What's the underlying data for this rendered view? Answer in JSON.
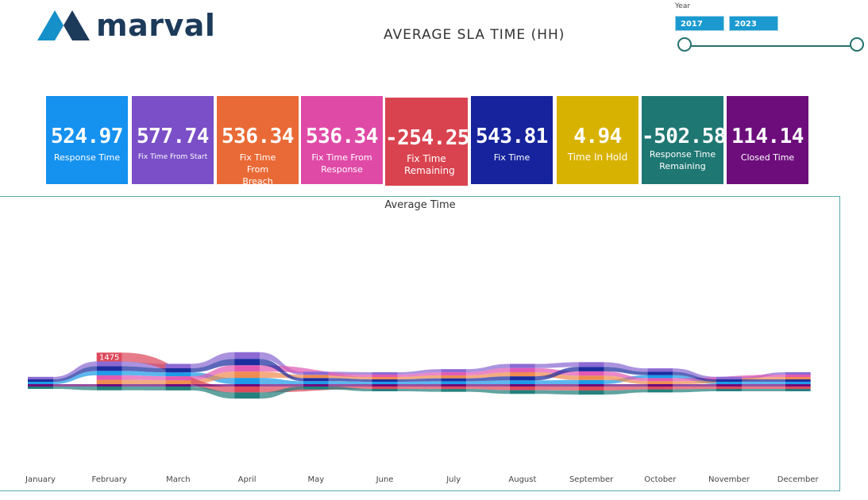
{
  "header": {
    "logo_text": "marval",
    "title": "AVERAGE  SLA  TIME  (HH)"
  },
  "year_filter": {
    "label": "Year",
    "from": "2017",
    "to": "2023"
  },
  "kpis": [
    {
      "value": "524.97",
      "label": "Response Time",
      "color": "#1591ef"
    },
    {
      "value": "577.74",
      "label": "Fix Time From Start",
      "color": "#7a4fc7"
    },
    {
      "value": "536.34",
      "label": "Fix Time From Breach",
      "color": "#e96a36"
    },
    {
      "value": "536.34",
      "label": "Fix Time From Response",
      "color": "#e04aa7"
    },
    {
      "value": "-254.25",
      "label": "Fix Time Remaining",
      "color": "#d9434f"
    },
    {
      "value": "543.81",
      "label": "Fix Time",
      "color": "#16239c"
    },
    {
      "value": "4.94",
      "label": "Time In Hold",
      "color": "#d8b200"
    },
    {
      "value": "-502.58",
      "label": "Response Time Remaining",
      "color": "#1f7773"
    },
    {
      "value": "114.14",
      "label": "Closed Time",
      "color": "#6d0d7c"
    }
  ],
  "chart_data": {
    "type": "ribbon",
    "title": "Average Time",
    "categories": [
      "January",
      "February",
      "March",
      "April",
      "May",
      "June",
      "July",
      "August",
      "September",
      "October",
      "November",
      "December"
    ],
    "series": [
      {
        "name": "Response Time",
        "color": "#1e9be8",
        "values": [
          393,
          741,
          663,
          1043,
          497,
          100,
          475,
          624,
          691,
          512,
          377,
          100
        ]
      },
      {
        "name": "Fix Time From Start",
        "color": "#8b6ad3",
        "values": [
          419,
          804,
          732,
          1116,
          533,
          120,
          529,
          708,
          804,
          577,
          427,
          120
        ]
      },
      {
        "name": "Fix Time From Breach",
        "color": "#ef8c52",
        "values": [
          null,
          733,
          653,
          1053,
          531,
          110,
          504,
          686,
          721,
          501,
          null,
          110
        ]
      },
      {
        "name": "Fix Time From Response",
        "color": "#e25ab4",
        "values": [
          null,
          733,
          653,
          1053,
          null,
          110,
          504,
          686,
          721,
          501,
          null,
          110
        ]
      },
      {
        "name": "Fix Time Remaining",
        "color": "#dd4a5c",
        "values": [
          null,
          1475,
          null,
          -982,
          null,
          -80,
          -415,
          -611,
          -671,
          -477,
          -80,
          -80
        ]
      },
      {
        "name": "Fix Time",
        "color": "#1c2d9e",
        "values": [
          395,
          771,
          683,
          1064,
          510,
          100,
          488,
          675,
          730,
          543,
          401,
          100
        ]
      },
      {
        "name": "Response Time Remaining",
        "color": "#23807c",
        "values": [
          -100,
          -630,
          -646,
          -1035,
          -491,
          -100,
          -469,
          -618,
          -685,
          -506,
          -100,
          -100
        ]
      },
      {
        "name": "Closed Time",
        "color": "#6d0d7c",
        "values": [
          20,
          30,
          30,
          30,
          20,
          10,
          20,
          30,
          40,
          20,
          15,
          10
        ]
      }
    ]
  }
}
